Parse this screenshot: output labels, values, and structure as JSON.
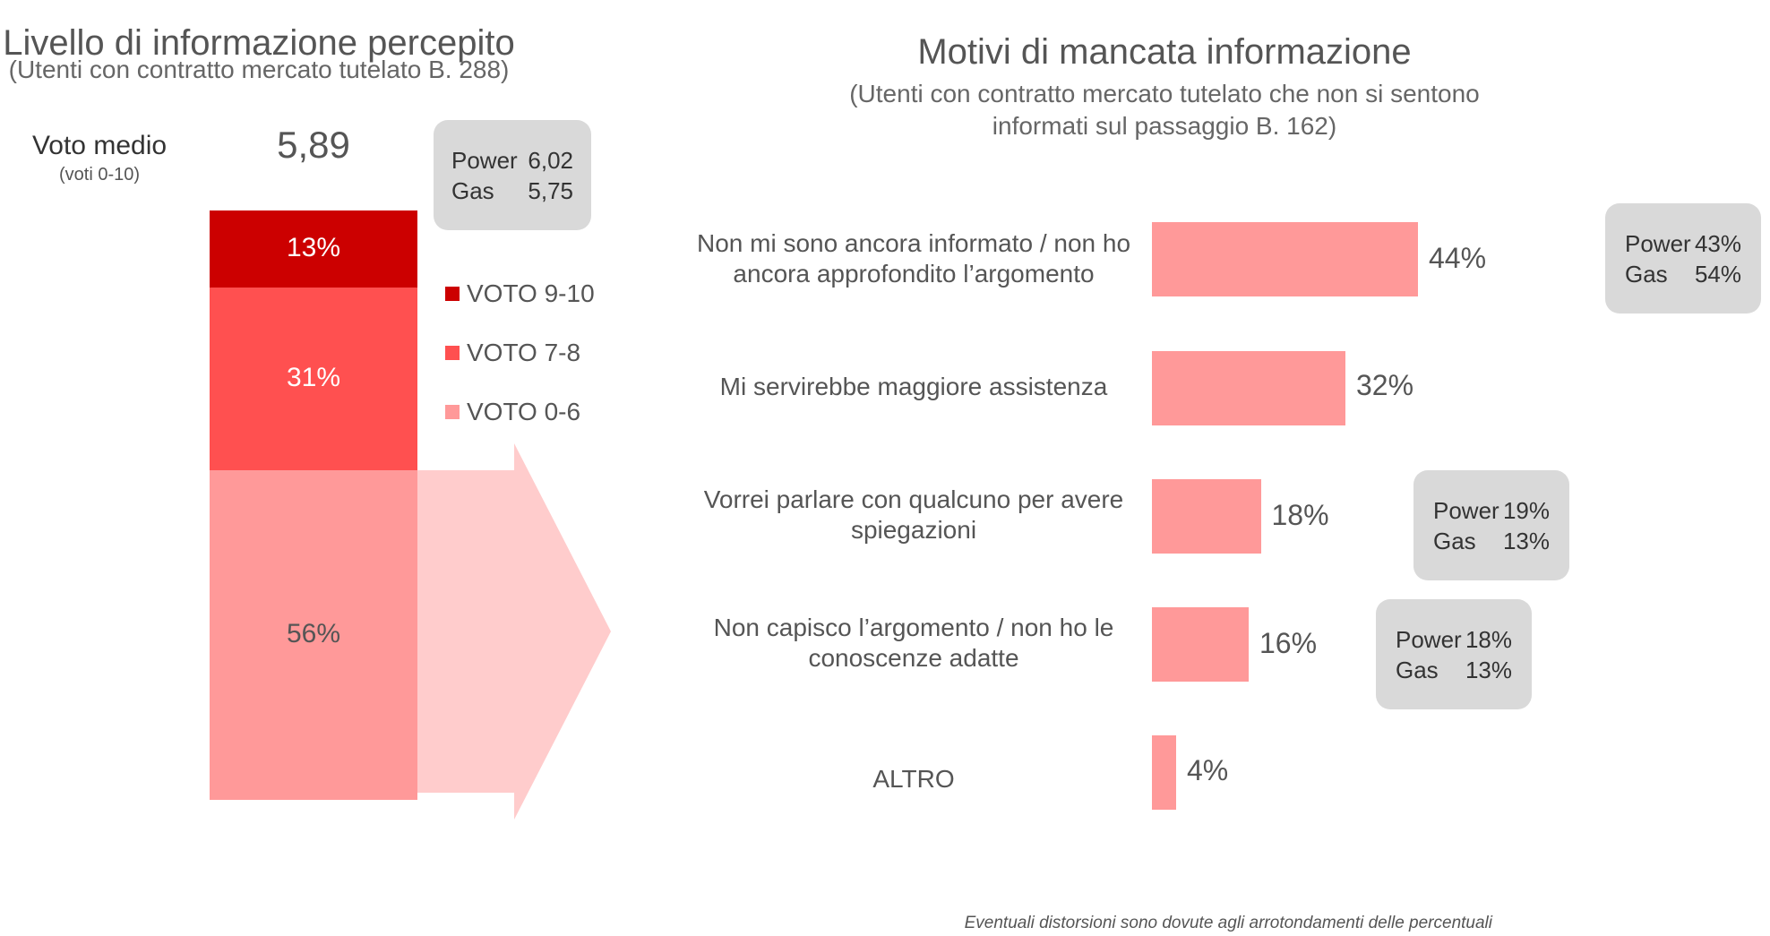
{
  "left": {
    "title": "Livello di informazione percepito",
    "subtitle": "(Utenti con contratto mercato tutelato B. 288)",
    "avg_label": "Voto medio",
    "avg_sublabel": "(voti 0-10)",
    "avg_value": "5,89",
    "callout": {
      "power_label": "Power",
      "power_value": "6,02",
      "gas_label": "Gas",
      "gas_value": "5,75"
    }
  },
  "right": {
    "title": "Motivi di mancata informazione",
    "subtitle": "(Utenti con contratto mercato tutelato che non si sentono informati sul passaggio B. 162)",
    "callouts": [
      {
        "power_label": "Power",
        "power_value": "43%",
        "gas_label": "Gas",
        "gas_value": "54%"
      },
      {
        "power_label": "Power",
        "power_value": "19%",
        "gas_label": "Gas",
        "gas_value": "13%"
      },
      {
        "power_label": "Power",
        "power_value": "18%",
        "gas_label": "Gas",
        "gas_value": "13%"
      }
    ]
  },
  "footnote": "Eventuali distorsioni sono dovute agli arrotondamenti delle percentuali",
  "colors": {
    "voto_9_10": "#cc0000",
    "voto_7_8": "#ff5050",
    "voto_0_6": "#ff9999",
    "arrow": "#ffcccc",
    "callout_bg": "#d9d9d9"
  },
  "chart_data": [
    {
      "type": "bar",
      "stacked": true,
      "title": "Livello di informazione percepito",
      "categories": [
        ""
      ],
      "series": [
        {
          "name": "VOTO 9-10",
          "values": [
            13
          ],
          "label": "13%"
        },
        {
          "name": "VOTO 7-8",
          "values": [
            31
          ],
          "label": "31%"
        },
        {
          "name": "VOTO 0-6",
          "values": [
            56
          ],
          "label": "56%"
        }
      ],
      "legend_position": "right"
    },
    {
      "type": "bar",
      "orientation": "horizontal",
      "title": "Motivi di mancata informazione",
      "categories": [
        "Non mi sono ancora informato / non ho ancora approfondito l’argomento",
        "Mi servirebbe maggiore assistenza",
        "Vorrei parlare con qualcuno per avere spiegazioni",
        "Non capisco l’argomento / non ho le conoscenze adatte",
        "ALTRO"
      ],
      "values": [
        44,
        32,
        18,
        16,
        4
      ],
      "labels": [
        "44%",
        "32%",
        "18%",
        "16%",
        "4%"
      ]
    }
  ]
}
